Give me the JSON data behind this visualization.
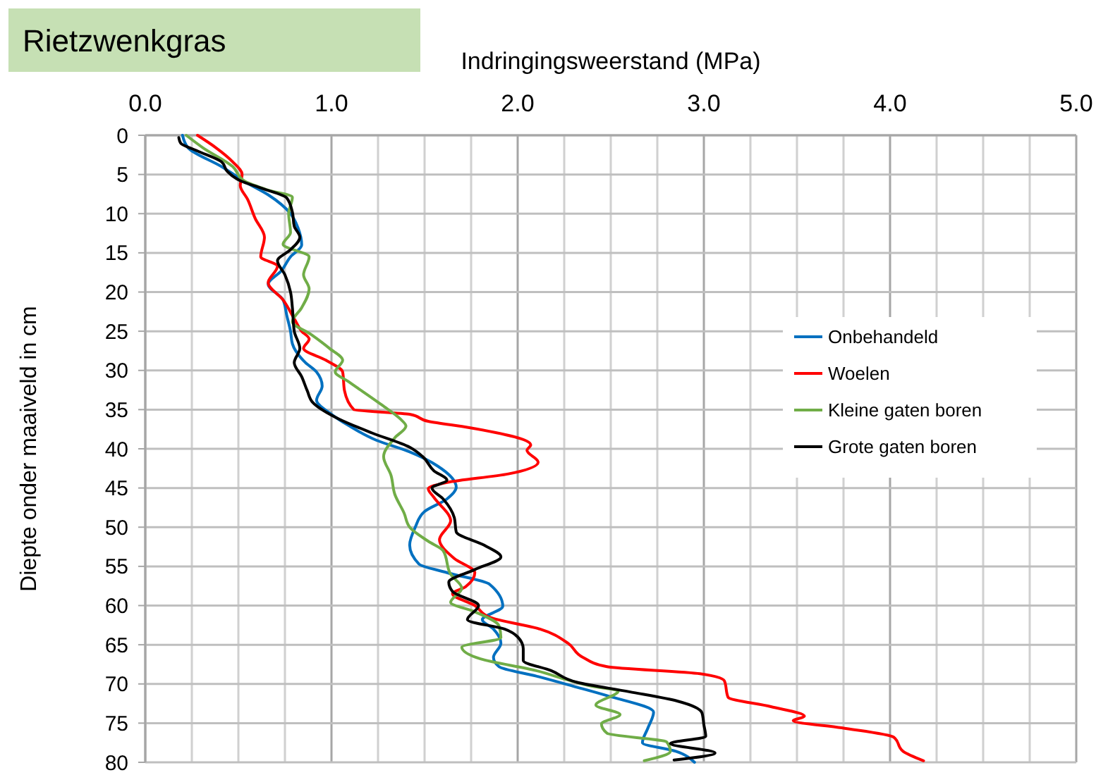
{
  "chart_data": {
    "type": "line",
    "title": "Rietzwenkgras",
    "xlabel": "Indringingsweerstand (MPa)",
    "ylabel": "Diepte onder maaiveld in cm",
    "xlim": [
      0,
      5
    ],
    "xticks": [
      {
        "value": 0,
        "label": "0.0"
      },
      {
        "value": 0.25,
        "label": null
      },
      {
        "value": 0.5,
        "label": null
      },
      {
        "value": 0.75,
        "label": null
      },
      {
        "value": 1,
        "label": "1.0"
      },
      {
        "value": 1.25,
        "label": null
      },
      {
        "value": 1.5,
        "label": null
      },
      {
        "value": 1.75,
        "label": null
      },
      {
        "value": 2,
        "label": "2.0"
      },
      {
        "value": 2.25,
        "label": null
      },
      {
        "value": 2.5,
        "label": null
      },
      {
        "value": 2.75,
        "label": null
      },
      {
        "value": 3,
        "label": "3.0"
      },
      {
        "value": 3.25,
        "label": null
      },
      {
        "value": 3.5,
        "label": null
      },
      {
        "value": 3.75,
        "label": null
      },
      {
        "value": 4,
        "label": "4.0"
      },
      {
        "value": 4.25,
        "label": null
      },
      {
        "value": 4.5,
        "label": null
      },
      {
        "value": 4.75,
        "label": null
      },
      {
        "value": 5,
        "label": "5.0"
      }
    ],
    "ylim": [
      80,
      0
    ],
    "yticks": [
      0,
      5,
      10,
      15,
      20,
      25,
      30,
      35,
      40,
      45,
      50,
      55,
      60,
      65,
      70,
      75,
      80
    ],
    "grid": true,
    "legend": "right",
    "marker": "none",
    "line_style": "solid",
    "series": [
      {
        "name": "Onbehandeld",
        "color": "#0070c0",
        "x": [
          0.2,
          0.23,
          0.41,
          0.54,
          0.66,
          0.78,
          0.82,
          0.84,
          0.78,
          0.73,
          0.66,
          0.74,
          0.76,
          0.78,
          0.79,
          0.86,
          0.92,
          0.95,
          0.92,
          1.0,
          1.09,
          1.24,
          1.42,
          1.57,
          1.67,
          1.62,
          1.5,
          1.45,
          1.42,
          1.47,
          1.62,
          1.85,
          1.92,
          1.81,
          1.87,
          1.91,
          1.87,
          1.9,
          2.1,
          2.3,
          2.48,
          2.73,
          2.7,
          2.67,
          2.85,
          2.95
        ],
        "values": [
          0,
          1.6,
          4,
          6,
          7.6,
          10,
          11.8,
          14,
          15.5,
          17.3,
          19,
          21,
          23,
          25,
          26.6,
          29,
          30.2,
          32,
          33.8,
          35.6,
          37,
          38.9,
          40.4,
          42.2,
          44.9,
          46.4,
          48,
          50,
          52.3,
          54.7,
          55.8,
          57.3,
          60.1,
          61.8,
          63,
          64.8,
          66.6,
          67.8,
          69,
          70.3,
          71.5,
          73.6,
          75.6,
          77.5,
          78.6,
          80
        ]
      },
      {
        "name": "Woelen",
        "color": "#ff0000",
        "x": [
          0.28,
          0.38,
          0.47,
          0.52,
          0.51,
          0.55,
          0.59,
          0.64,
          0.62,
          0.71,
          0.66,
          0.74,
          0.8,
          0.84,
          0.88,
          0.85,
          0.97,
          1.06,
          1.07,
          1.12,
          1.42,
          1.52,
          1.74,
          2.07,
          2.05,
          2.11,
          1.95,
          1.62,
          1.52,
          1.55,
          1.64,
          1.58,
          1.66,
          1.77,
          1.72,
          1.65,
          1.77,
          1.85,
          2.12,
          2.27,
          2.35,
          2.48,
          2.98,
          3.11,
          3.13,
          3.36,
          3.54,
          3.48,
          3.74,
          4.02,
          4.07,
          4.18
        ],
        "values": [
          0,
          1.6,
          3.4,
          5,
          6.4,
          8.2,
          10.6,
          13,
          15.5,
          16.7,
          18.8,
          21,
          23.4,
          25,
          26,
          27.2,
          28.7,
          30.2,
          32.6,
          35,
          35.6,
          36.5,
          37.3,
          39.5,
          40.2,
          41.7,
          43.2,
          44.3,
          45.1,
          46.2,
          49.2,
          51.6,
          54,
          55.8,
          57.6,
          58.5,
          60,
          61.5,
          63,
          64.8,
          66.6,
          67.8,
          68.7,
          69.6,
          71.7,
          72.9,
          74.1,
          74.7,
          75.6,
          76.8,
          78.6,
          79.8
        ]
      },
      {
        "name": "Kleine gaten boren",
        "color": "#70ad47",
        "x": [
          0.22,
          0.31,
          0.47,
          0.53,
          0.66,
          0.79,
          0.77,
          0.78,
          0.74,
          0.88,
          0.85,
          0.88,
          0.84,
          0.79,
          0.89,
          0.99,
          1.06,
          1.02,
          1.09,
          1.27,
          1.37,
          1.4,
          1.34,
          1.28,
          1.32,
          1.34,
          1.39,
          1.42,
          1.52,
          1.6,
          1.64,
          1.7,
          1.64,
          1.77,
          1.9,
          1.91,
          1.7,
          1.8,
          2.1,
          2.27,
          2.4,
          2.54,
          2.42,
          2.55,
          2.45,
          2.48,
          2.8,
          2.82,
          2.68
        ],
        "values": [
          0,
          1.6,
          4,
          5.8,
          7,
          7.9,
          10,
          12.4,
          13.9,
          15.5,
          17.8,
          19.6,
          22,
          23.8,
          25.4,
          27.2,
          28.7,
          30.2,
          31.4,
          34.4,
          36.2,
          37.1,
          38.6,
          41,
          43.4,
          45.8,
          48.2,
          50,
          51.8,
          53,
          56,
          57.8,
          59.6,
          60.8,
          62.6,
          64.1,
          65.3,
          66.8,
          68.3,
          69.5,
          70.3,
          70.9,
          72.7,
          73.9,
          75.1,
          76.3,
          77.4,
          78.6,
          79.8
        ]
      },
      {
        "name": "Grote gaten boren",
        "color": "#000000",
        "x": [
          0.18,
          0.19,
          0.28,
          0.41,
          0.44,
          0.51,
          0.63,
          0.76,
          0.79,
          0.8,
          0.83,
          0.78,
          0.71,
          0.75,
          0.78,
          0.79,
          0.8,
          0.83,
          0.8,
          0.84,
          0.87,
          0.9,
          1.04,
          1.22,
          1.42,
          1.49,
          1.55,
          1.62,
          1.54,
          1.6,
          1.66,
          1.67,
          1.82,
          1.91,
          1.77,
          1.63,
          1.65,
          1.79,
          1.73,
          1.93,
          2.0,
          2.03,
          2.03,
          2.18,
          2.32,
          2.6,
          2.86,
          2.99,
          3.0,
          3.01,
          2.82,
          3.06,
          2.84
        ],
        "values": [
          0.3,
          1,
          2,
          3.4,
          4.6,
          5.8,
          6.8,
          8,
          9.8,
          11.6,
          13,
          14.6,
          16,
          17.8,
          20,
          22,
          25,
          27.2,
          29,
          30.8,
          32.6,
          34.1,
          36.2,
          38,
          39.8,
          41,
          42.8,
          44,
          45,
          46.4,
          48.8,
          50.6,
          52.3,
          53.8,
          55.4,
          57,
          58.2,
          60,
          61.8,
          63,
          64,
          65.5,
          67,
          68.3,
          69.8,
          71,
          72.2,
          73.7,
          75.2,
          76.7,
          77.6,
          78.8,
          79.7
        ]
      }
    ]
  }
}
